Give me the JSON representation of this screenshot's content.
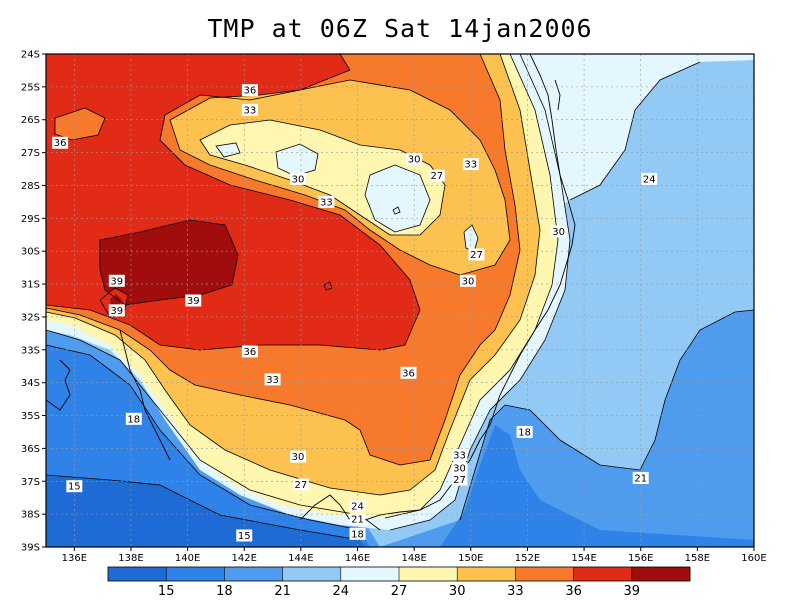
{
  "title": "TMP at 06Z Sat 14jan2006",
  "lat_ticks": [
    "24S",
    "25S",
    "26S",
    "27S",
    "28S",
    "29S",
    "30S",
    "31S",
    "32S",
    "33S",
    "34S",
    "35S",
    "36S",
    "37S",
    "38S",
    "39S"
  ],
  "lon_ticks": [
    "136E",
    "138E",
    "140E",
    "142E",
    "144E",
    "146E",
    "148E",
    "150E",
    "152E",
    "154E",
    "156E",
    "158E",
    "160E"
  ],
  "contour_labels": [
    {
      "text": "36",
      "lon": 142.2,
      "lat": 25.1
    },
    {
      "text": "33",
      "lon": 142.2,
      "lat": 25.7
    },
    {
      "text": "36",
      "lon": 135.5,
      "lat": 26.7
    },
    {
      "text": "30",
      "lon": 148.0,
      "lat": 27.2
    },
    {
      "text": "33",
      "lon": 150.0,
      "lat": 27.35
    },
    {
      "text": "27",
      "lon": 148.8,
      "lat": 27.7
    },
    {
      "text": "30",
      "lon": 143.9,
      "lat": 27.8
    },
    {
      "text": "33",
      "lon": 144.9,
      "lat": 28.5
    },
    {
      "text": "30",
      "lon": 153.1,
      "lat": 29.4
    },
    {
      "text": "27",
      "lon": 150.2,
      "lat": 30.1
    },
    {
      "text": "30",
      "lon": 149.9,
      "lat": 30.9
    },
    {
      "text": "39",
      "lon": 137.5,
      "lat": 30.9
    },
    {
      "text": "39",
      "lon": 140.2,
      "lat": 31.5
    },
    {
      "text": "39",
      "lon": 137.5,
      "lat": 31.8
    },
    {
      "text": "24",
      "lon": 156.3,
      "lat": 27.8
    },
    {
      "text": "36",
      "lon": 142.2,
      "lat": 33.05
    },
    {
      "text": "36",
      "lon": 147.8,
      "lat": 33.7
    },
    {
      "text": "33",
      "lon": 143.0,
      "lat": 33.9
    },
    {
      "text": "18",
      "lon": 138.1,
      "lat": 35.1
    },
    {
      "text": "18",
      "lon": 151.9,
      "lat": 35.5
    },
    {
      "text": "30",
      "lon": 143.9,
      "lat": 36.25
    },
    {
      "text": "33",
      "lon": 149.6,
      "lat": 36.2
    },
    {
      "text": "30",
      "lon": 149.6,
      "lat": 36.6
    },
    {
      "text": "27",
      "lon": 149.6,
      "lat": 36.95
    },
    {
      "text": "21",
      "lon": 156.0,
      "lat": 36.9
    },
    {
      "text": "15",
      "lon": 136.0,
      "lat": 37.15
    },
    {
      "text": "27",
      "lon": 144.0,
      "lat": 37.1
    },
    {
      "text": "24",
      "lon": 146.0,
      "lat": 37.75
    },
    {
      "text": "21",
      "lon": 146.0,
      "lat": 38.15
    },
    {
      "text": "18",
      "lon": 146.0,
      "lat": 38.6
    },
    {
      "text": "15",
      "lon": 142.0,
      "lat": 38.65
    }
  ],
  "colorbar": {
    "levels": [
      "15",
      "18",
      "21",
      "24",
      "27",
      "30",
      "33",
      "36",
      "39"
    ],
    "colors": [
      "#1f6bd6",
      "#2e82e8",
      "#4f9cef",
      "#92c9f5",
      "#e4f6fe",
      "#fff6b0",
      "#fcc14e",
      "#f7792b",
      "#e12b17",
      "#a10d0d"
    ]
  },
  "zone_colors": {
    "z15": "#1f6bd6",
    "z18": "#2e82e8",
    "z21": "#4f9cef",
    "z24": "#92c9f5",
    "z27": "#e4f6fe",
    "z30": "#fff6b0",
    "z33": "#fcc14e",
    "z36": "#f7792b",
    "z39": "#e12b17",
    "z40": "#a10d0d"
  }
}
